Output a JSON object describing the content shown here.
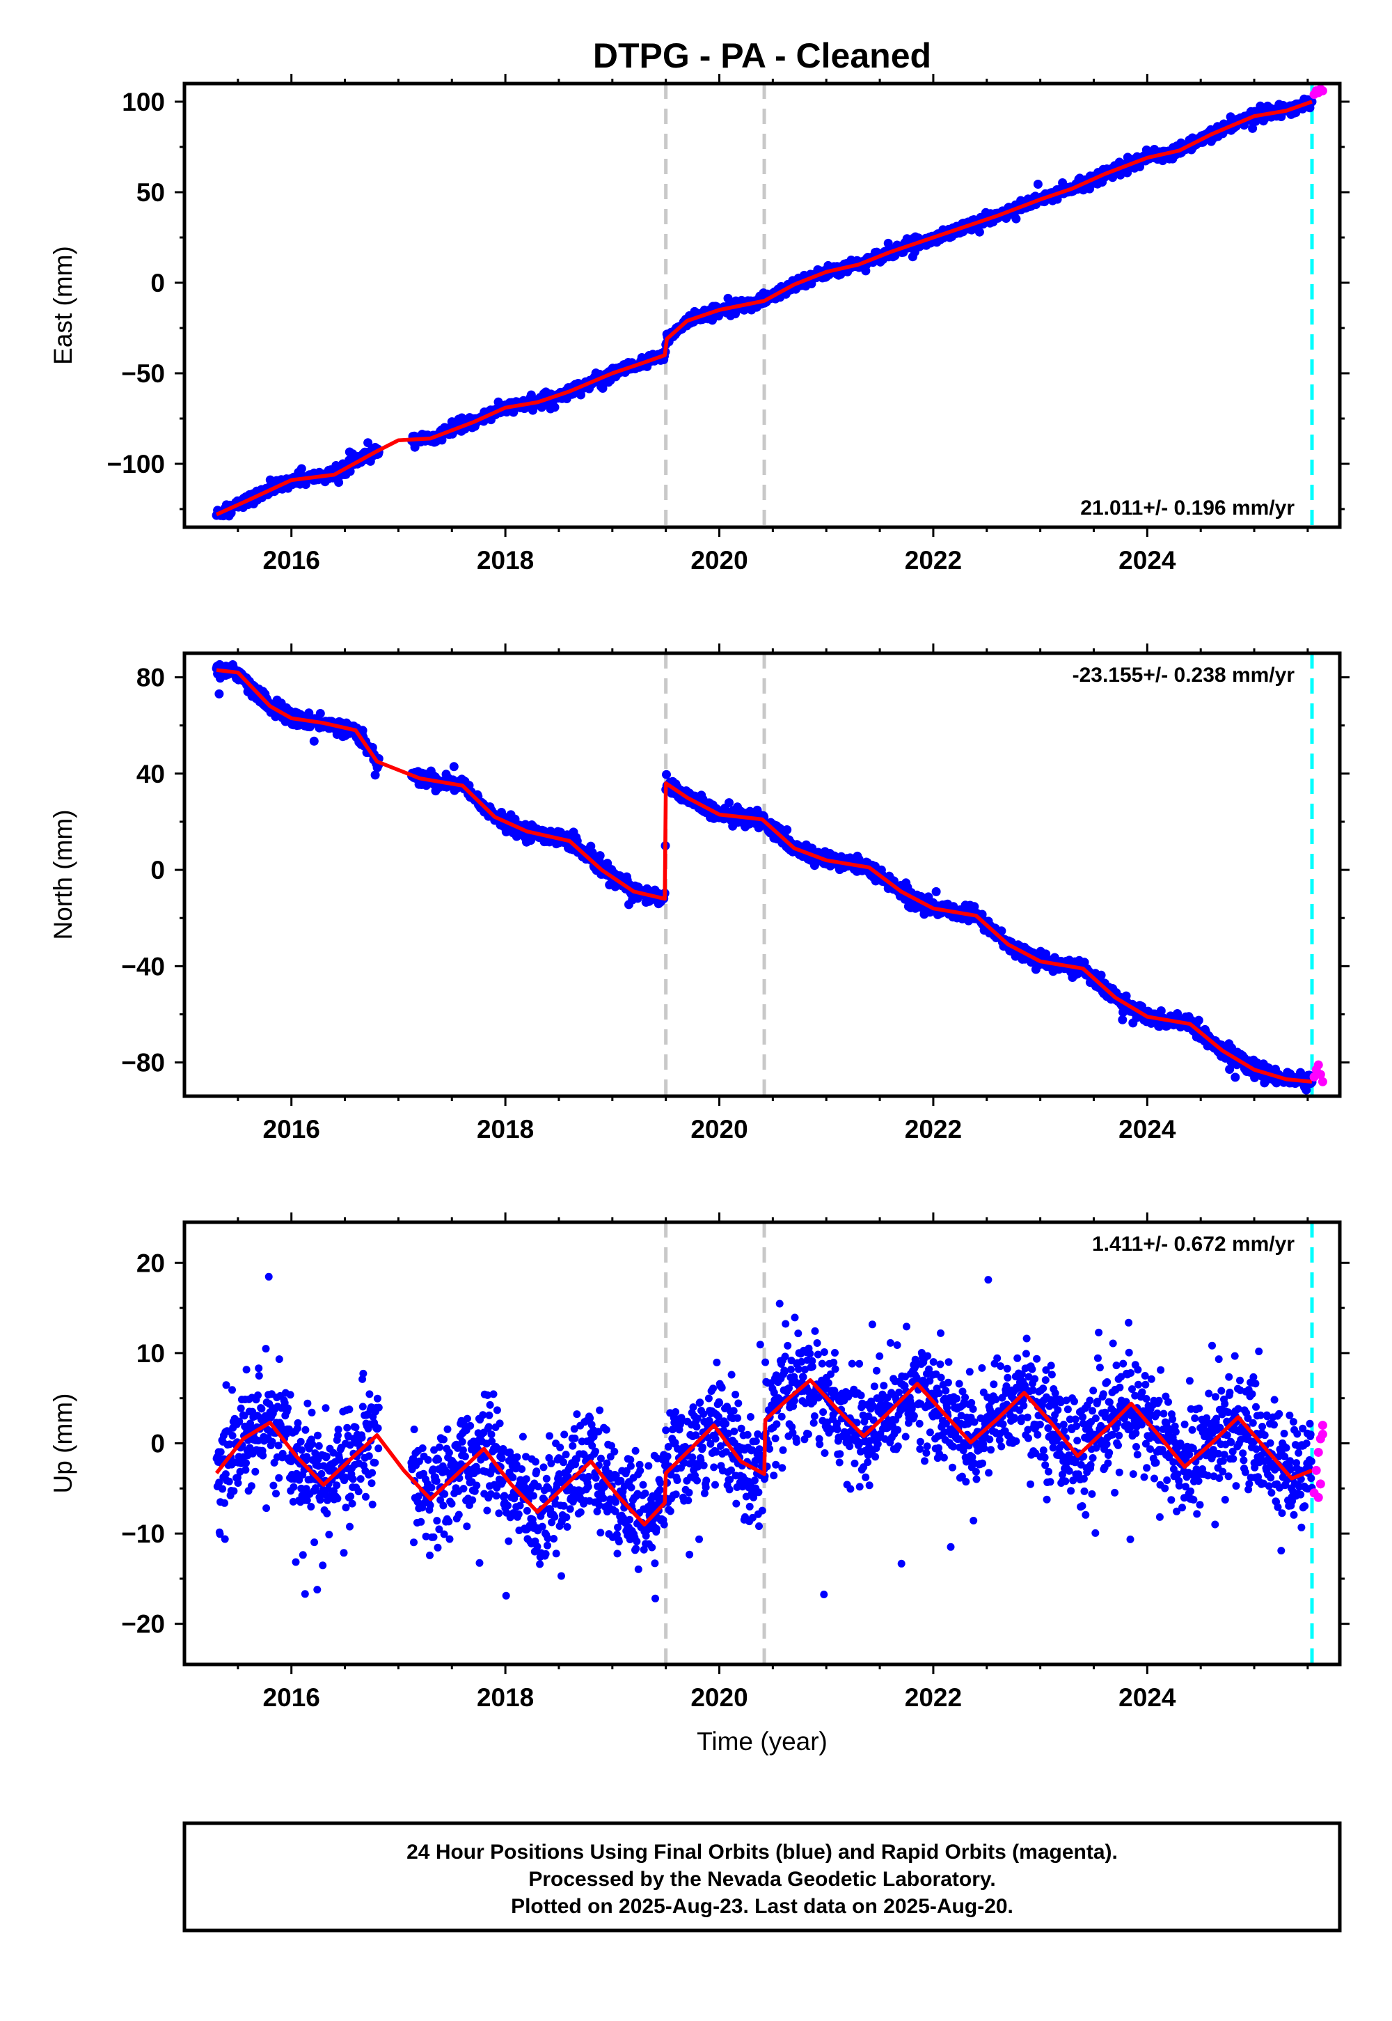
{
  "title": "DTPG  - PA - Cleaned",
  "footer": {
    "lines": [
      "24 Hour Positions Using Final Orbits (blue) and Rapid Orbits (magenta).",
      "Processed by the Nevada Geodetic Laboratory.",
      "Plotted on 2025-Aug-23. Last data on 2025-Aug-20."
    ]
  },
  "colors": {
    "final_orbits": "#0000ff",
    "rapid_orbits": "#ff00ff",
    "model_fit": "#ff0000",
    "step_marker": "#c8c8c8",
    "rapid_start_marker": "#00ffff"
  },
  "chart_data": [
    {
      "type": "scatter",
      "panel": "east",
      "xlabel": "",
      "ylabel": "East (mm)",
      "xlim": [
        2015.0,
        2025.8
      ],
      "ylim": [
        -135,
        110
      ],
      "x_ticks": [
        2016,
        2018,
        2020,
        2022,
        2024
      ],
      "x_tick_labels": [
        "2016",
        "2018",
        "2020",
        "2022",
        "2024"
      ],
      "y_ticks": [
        -100,
        -50,
        0,
        50,
        100
      ],
      "y_tick_labels": [
        "−100",
        "−50",
        "0",
        "50",
        "100"
      ],
      "rate_label": "21.011+/- 0.196 mm/yr",
      "rate_label_position": "bottom-right",
      "step_markers": [
        2019.5,
        2020.42
      ],
      "rapid_marker": 2025.54,
      "model_points": [
        [
          2015.3,
          -128
        ],
        [
          2015.6,
          -120
        ],
        [
          2016.0,
          -109
        ],
        [
          2016.4,
          -106
        ],
        [
          2016.8,
          -93
        ],
        [
          2017.0,
          -87
        ],
        [
          2017.3,
          -86
        ],
        [
          2017.7,
          -77
        ],
        [
          2018.0,
          -69
        ],
        [
          2018.3,
          -66
        ],
        [
          2018.6,
          -60
        ],
        [
          2019.0,
          -50
        ],
        [
          2019.3,
          -44
        ],
        [
          2019.49,
          -40
        ],
        [
          2019.51,
          -31
        ],
        [
          2019.7,
          -21
        ],
        [
          2020.0,
          -15
        ],
        [
          2020.42,
          -10
        ],
        [
          2020.7,
          -1
        ],
        [
          2021.0,
          6
        ],
        [
          2021.3,
          10
        ],
        [
          2021.6,
          17
        ],
        [
          2022.0,
          25
        ],
        [
          2022.3,
          31
        ],
        [
          2022.6,
          37
        ],
        [
          2023.0,
          46
        ],
        [
          2023.3,
          52
        ],
        [
          2023.6,
          60
        ],
        [
          2024.0,
          69
        ],
        [
          2024.3,
          73
        ],
        [
          2024.6,
          82
        ],
        [
          2025.0,
          92
        ],
        [
          2025.3,
          95
        ],
        [
          2025.54,
          100
        ]
      ],
      "rapid_points": [
        [
          2025.56,
          104
        ],
        [
          2025.58,
          106
        ],
        [
          2025.6,
          105
        ],
        [
          2025.62,
          107
        ],
        [
          2025.64,
          106
        ]
      ]
    },
    {
      "type": "scatter",
      "panel": "north",
      "xlabel": "",
      "ylabel": "North (mm)",
      "xlim": [
        2015.0,
        2025.8
      ],
      "ylim": [
        -94,
        90
      ],
      "x_ticks": [
        2016,
        2018,
        2020,
        2022,
        2024
      ],
      "x_tick_labels": [
        "2016",
        "2018",
        "2020",
        "2022",
        "2024"
      ],
      "y_ticks": [
        -80,
        -40,
        0,
        40,
        80
      ],
      "y_tick_labels": [
        "−80",
        "−40",
        "0",
        "40",
        "80"
      ],
      "rate_label": "-23.155+/- 0.238 mm/yr",
      "rate_label_position": "top-right",
      "step_markers": [
        2019.5,
        2020.42
      ],
      "rapid_marker": 2025.54,
      "model_points": [
        [
          2015.3,
          83
        ],
        [
          2015.5,
          82
        ],
        [
          2015.8,
          68
        ],
        [
          2016.0,
          63
        ],
        [
          2016.3,
          61
        ],
        [
          2016.6,
          58
        ],
        [
          2016.8,
          45
        ],
        [
          2017.2,
          38
        ],
        [
          2017.6,
          35
        ],
        [
          2017.9,
          22
        ],
        [
          2018.2,
          16
        ],
        [
          2018.6,
          12
        ],
        [
          2018.9,
          0
        ],
        [
          2019.2,
          -9
        ],
        [
          2019.49,
          -12
        ],
        [
          2019.5,
          36
        ],
        [
          2019.7,
          30
        ],
        [
          2020.0,
          23
        ],
        [
          2020.4,
          21
        ],
        [
          2020.7,
          9
        ],
        [
          2021.0,
          4
        ],
        [
          2021.4,
          1
        ],
        [
          2021.7,
          -9
        ],
        [
          2022.0,
          -16
        ],
        [
          2022.4,
          -19
        ],
        [
          2022.7,
          -31
        ],
        [
          2023.0,
          -38
        ],
        [
          2023.4,
          -41
        ],
        [
          2023.7,
          -53
        ],
        [
          2024.0,
          -61
        ],
        [
          2024.4,
          -64
        ],
        [
          2024.7,
          -75
        ],
        [
          2025.0,
          -83
        ],
        [
          2025.3,
          -87
        ],
        [
          2025.54,
          -88
        ]
      ],
      "rapid_points": [
        [
          2025.56,
          -86
        ],
        [
          2025.58,
          -83
        ],
        [
          2025.6,
          -81
        ],
        [
          2025.62,
          -85
        ],
        [
          2025.64,
          -88
        ]
      ]
    },
    {
      "type": "scatter",
      "panel": "up",
      "xlabel": "Time (year)",
      "ylabel": "Up (mm)",
      "xlim": [
        2015.0,
        2025.8
      ],
      "ylim": [
        -24.5,
        24.5
      ],
      "x_ticks": [
        2016,
        2018,
        2020,
        2022,
        2024
      ],
      "x_tick_labels": [
        "2016",
        "2018",
        "2020",
        "2022",
        "2024"
      ],
      "y_ticks": [
        -20,
        -10,
        0,
        10,
        20
      ],
      "y_tick_labels": [
        "−20",
        "−10",
        "0",
        "10",
        "20"
      ],
      "rate_label": "1.411+/- 0.672 mm/yr",
      "rate_label_position": "top-right",
      "step_markers": [
        2019.5,
        2020.42
      ],
      "rapid_marker": 2025.54,
      "model": {
        "start": 2015.3,
        "end": 2025.54,
        "seasonal_amplitude_mm": 4,
        "peak_phase_year": 0.83
      },
      "model_points": [
        [
          2015.3,
          -3.3
        ],
        [
          2015.55,
          0.5
        ],
        [
          2015.8,
          2.3
        ],
        [
          2016.05,
          -1.5
        ],
        [
          2016.3,
          -4.6
        ],
        [
          2016.55,
          -1.8
        ],
        [
          2016.8,
          0.9
        ],
        [
          2017.05,
          -3.0
        ],
        [
          2017.3,
          -6.2
        ],
        [
          2017.55,
          -3.4
        ],
        [
          2017.8,
          -0.6
        ],
        [
          2018.05,
          -4.5
        ],
        [
          2018.3,
          -7.6
        ],
        [
          2018.55,
          -4.8
        ],
        [
          2018.8,
          -2.0
        ],
        [
          2019.05,
          -5.8
        ],
        [
          2019.3,
          -9.0
        ],
        [
          2019.49,
          -6.6
        ],
        [
          2019.5,
          -3.3
        ],
        [
          2019.75,
          -0.4
        ],
        [
          2019.95,
          2.0
        ],
        [
          2020.2,
          -2.0
        ],
        [
          2020.42,
          -3.4
        ],
        [
          2020.43,
          2.6
        ],
        [
          2020.65,
          5.0
        ],
        [
          2020.85,
          7.0
        ],
        [
          2021.1,
          3.8
        ],
        [
          2021.35,
          0.8
        ],
        [
          2021.6,
          3.6
        ],
        [
          2021.85,
          6.6
        ],
        [
          2022.1,
          3.3
        ],
        [
          2022.35,
          0.1
        ],
        [
          2022.6,
          2.7
        ],
        [
          2022.85,
          5.6
        ],
        [
          2023.1,
          2.3
        ],
        [
          2023.35,
          -1.4
        ],
        [
          2023.6,
          1.4
        ],
        [
          2023.85,
          4.4
        ],
        [
          2024.1,
          1.0
        ],
        [
          2024.35,
          -2.6
        ],
        [
          2024.6,
          0.0
        ],
        [
          2024.85,
          2.9
        ],
        [
          2025.1,
          -0.5
        ],
        [
          2025.35,
          -3.9
        ],
        [
          2025.54,
          -3.0
        ]
      ],
      "rapid_points": [
        [
          2025.56,
          -5.5
        ],
        [
          2025.58,
          -3.0
        ],
        [
          2025.6,
          -1.0
        ],
        [
          2025.62,
          0.5
        ],
        [
          2025.64,
          2.0
        ],
        [
          2025.6,
          -6.0
        ],
        [
          2025.62,
          -4.5
        ],
        [
          2025.64,
          1.0
        ]
      ]
    }
  ]
}
